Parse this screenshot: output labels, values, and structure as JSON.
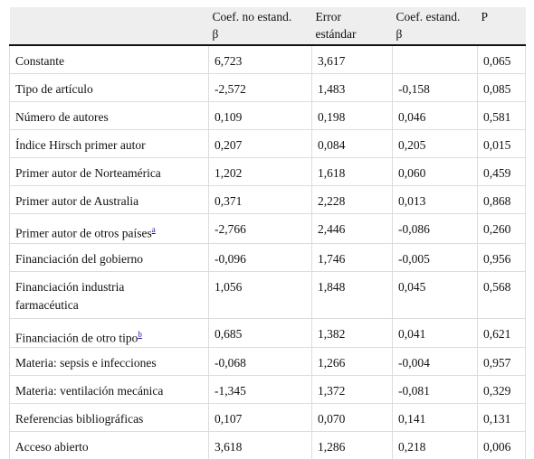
{
  "table": {
    "header": [
      null,
      [
        "Coef. no estand.",
        "β"
      ],
      [
        "Error",
        "estándar"
      ],
      [
        "Coef. estand.",
        "β"
      ],
      [
        "P"
      ]
    ],
    "rows": [
      {
        "label": "Constante",
        "cells": [
          "6,723",
          "3,617",
          null,
          "0,065"
        ]
      },
      {
        "label": "Tipo de artículo",
        "cells": [
          "-2,572",
          "1,483",
          "-0,158",
          "0,085"
        ]
      },
      {
        "label": "Número de autores",
        "cells": [
          "0,109",
          "0,198",
          "0,046",
          "0,581"
        ]
      },
      {
        "label": "Índice Hirsch primer autor",
        "cells": [
          "0,207",
          "0,084",
          "0,205",
          "0,015"
        ]
      },
      {
        "label": "Primer autor de Norteamérica",
        "cells": [
          "1,202",
          "1,618",
          "0,060",
          "0,459"
        ]
      },
      {
        "label": "Primer autor de Australia",
        "cells": [
          "0,371",
          "2,228",
          "0,013",
          "0,868"
        ]
      },
      {
        "label": "Primer autor de otros países",
        "note": "a",
        "cells": [
          "-2,766",
          "2,446",
          "-0,086",
          "0,260"
        ]
      },
      {
        "label": "Financiación del gobierno",
        "cells": [
          "-0,096",
          "1,746",
          "-0,005",
          "0,956"
        ]
      },
      {
        "label": [
          "Financiación industria",
          "farmacéutica"
        ],
        "cells": [
          "1,056",
          "1,848",
          "0,045",
          "0,568"
        ]
      },
      {
        "label": "Financiación de otro tipo",
        "note": "b",
        "cells": [
          "0,685",
          "1,382",
          "0,041",
          "0,621"
        ]
      },
      {
        "label": "Materia: sepsis e infecciones",
        "cells": [
          "-0,068",
          "1,266",
          "-0,004",
          "0,957"
        ]
      },
      {
        "label": "Materia: ventilación mecánica",
        "cells": [
          "-1,345",
          "1,372",
          "-0,081",
          "0,329"
        ]
      },
      {
        "label": "Referencias bibliográficas",
        "cells": [
          "0,107",
          "0,070",
          "0,141",
          "0,131"
        ]
      },
      {
        "label": "Acceso abierto",
        "cells": [
          "3,618",
          "1,286",
          "0,218",
          "0,006"
        ]
      }
    ]
  }
}
